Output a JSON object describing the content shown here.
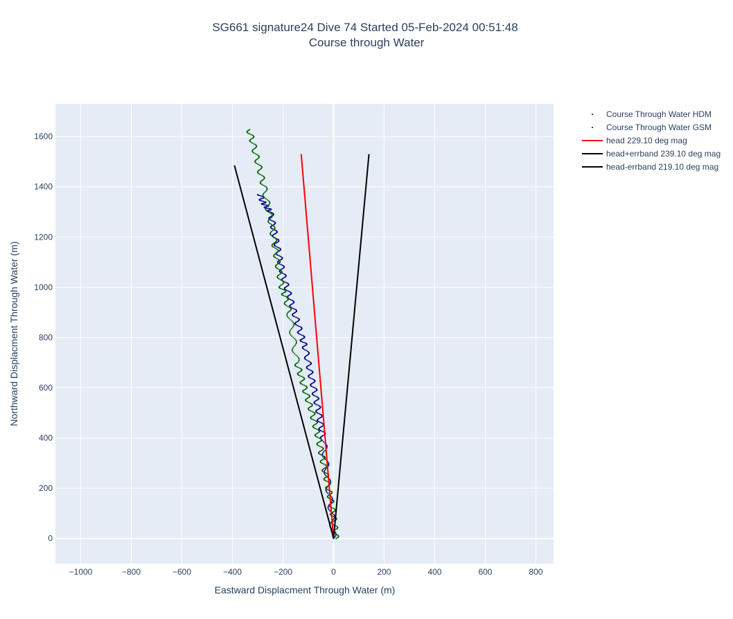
{
  "chart_data": {
    "type": "line",
    "title": "SG661 signature24 Dive 74 Started 05-Feb-2024 00:51:48",
    "subtitle": "Course through Water",
    "xlabel": "Eastward Displacment Through Water (m)",
    "ylabel": "Northward Displacment Through Water (m)",
    "xlim": [
      -1100,
      870
    ],
    "ylim": [
      -100,
      1730
    ],
    "xticks": [
      -1000,
      -800,
      -600,
      -400,
      -200,
      0,
      200,
      400,
      600,
      800
    ],
    "xtick_labels": [
      "−1000",
      "−800",
      "−600",
      "−400",
      "−200",
      "0",
      "200",
      "400",
      "600",
      "800"
    ],
    "yticks": [
      0,
      200,
      400,
      600,
      800,
      1000,
      1200,
      1400,
      1600
    ],
    "ytick_labels": [
      "0",
      "200",
      "400",
      "600",
      "800",
      "1000",
      "1200",
      "1400",
      "1600"
    ],
    "grid": true,
    "legend_position": "right",
    "series": [
      {
        "name": "Course Through Water HDM",
        "mode": "markers",
        "color": "#00008b",
        "x": [
          0,
          -8,
          -20,
          -30,
          -40,
          -50,
          -58,
          -68,
          -78,
          -90,
          -100,
          -112,
          -125,
          -140,
          -155,
          -170,
          -185,
          -200,
          -210,
          -220,
          -230,
          -240,
          -250,
          -265,
          -280,
          -290
        ],
        "y": [
          0,
          100,
          200,
          300,
          400,
          450,
          500,
          550,
          600,
          650,
          700,
          760,
          800,
          850,
          900,
          950,
          1000,
          1050,
          1100,
          1150,
          1200,
          1250,
          1300,
          1320,
          1340,
          1370
        ]
      },
      {
        "name": "Course Through Water GSM",
        "mode": "markers",
        "color": "#006400",
        "x": [
          10,
          5,
          -2,
          -10,
          -20,
          -30,
          -40,
          -50,
          -60,
          -72,
          -85,
          -100,
          -115,
          -130,
          -145,
          -160,
          -175,
          -190,
          -205,
          -215,
          -225,
          -235,
          -245,
          -260,
          -275,
          -290,
          -305,
          -320,
          -335
        ],
        "y": [
          0,
          50,
          100,
          150,
          200,
          250,
          300,
          350,
          400,
          450,
          500,
          550,
          600,
          650,
          700,
          800,
          900,
          960,
          1000,
          1060,
          1120,
          1180,
          1250,
          1320,
          1400,
          1460,
          1520,
          1580,
          1630
        ]
      },
      {
        "name": "head 229.10 deg mag",
        "mode": "lines",
        "color": "#ff0000",
        "x": [
          0,
          -128
        ],
        "y": [
          0,
          1530
        ]
      },
      {
        "name": "head+errband 239.10 deg mag",
        "mode": "lines",
        "color": "#000000",
        "x": [
          0,
          -392
        ],
        "y": [
          0,
          1485
        ]
      },
      {
        "name": "head-errband 219.10 deg mag",
        "mode": "lines",
        "color": "#000000",
        "x": [
          0,
          140
        ],
        "y": [
          0,
          1530
        ]
      }
    ]
  }
}
